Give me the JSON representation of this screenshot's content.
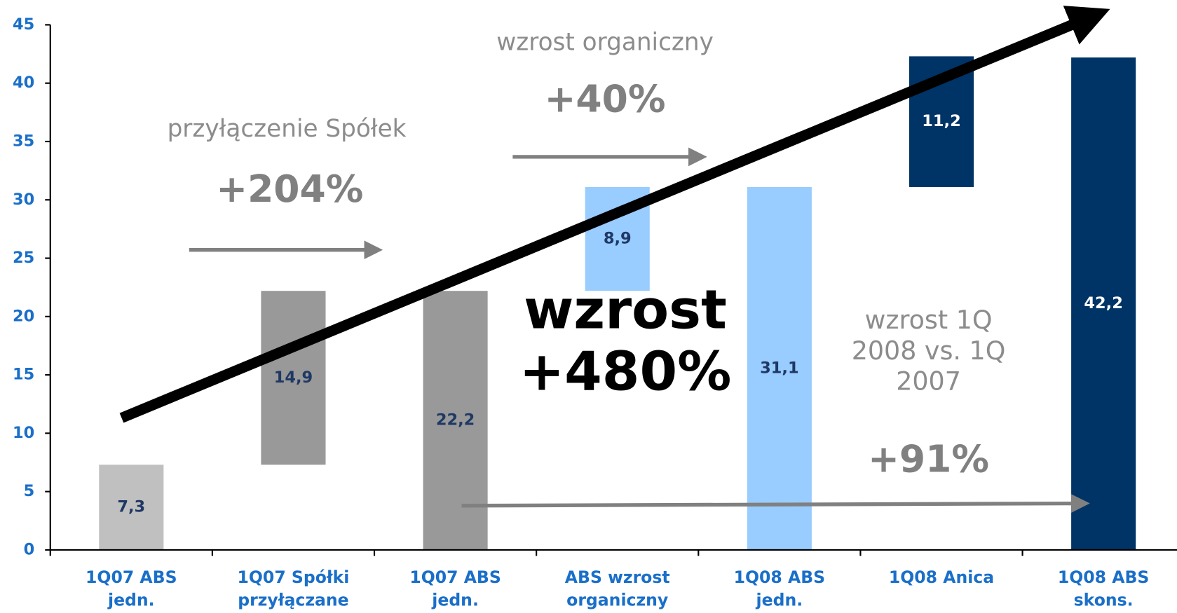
{
  "chart_data": {
    "type": "waterfall",
    "categories": [
      [
        "1Q07 ABS",
        "jedn."
      ],
      [
        "1Q07 Spółki",
        "przyłączane"
      ],
      [
        "1Q07 ABS",
        "jedn."
      ],
      [
        "ABS wzrost",
        "organiczny"
      ],
      [
        "1Q08 ABS",
        "jedn."
      ],
      [
        "1Q08 Anica"
      ],
      [
        "1Q08 ABS",
        "skons."
      ]
    ],
    "values": [
      7.3,
      14.9,
      22.2,
      8.9,
      31.1,
      11.2,
      42.2
    ],
    "value_labels": [
      "7,3",
      "14,9",
      "22,2",
      "8,9",
      "31,1",
      "11,2",
      "42,2"
    ],
    "measures": [
      "absolute",
      "relative",
      "absolute",
      "relative",
      "absolute",
      "relative",
      "absolute"
    ],
    "colors": [
      "#c0c0c0",
      "#999999",
      "#999999",
      "#99ccff",
      "#99ccff",
      "#003366",
      "#003366"
    ],
    "ylim": [
      0,
      45
    ],
    "yticks": [
      0,
      5,
      10,
      15,
      20,
      25,
      30,
      35,
      40,
      45
    ],
    "annotations": [
      {
        "lines": [
          "przyłączenie Spółek"
        ]
      },
      {
        "lines": [
          "+204%"
        ]
      },
      {
        "lines": [
          "wzrost organiczny"
        ]
      },
      {
        "lines": [
          "+40%"
        ]
      },
      {
        "lines": [
          "wzrost",
          "+480%"
        ]
      },
      {
        "lines": [
          "wzrost 1Q",
          "2008 vs. 1Q",
          "2007"
        ]
      },
      {
        "lines": [
          "+91%"
        ]
      }
    ]
  }
}
